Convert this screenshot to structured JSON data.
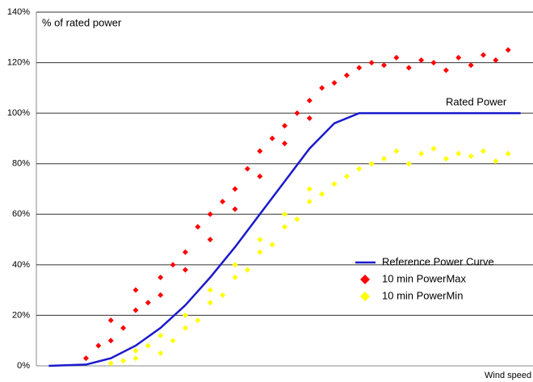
{
  "chart_data": {
    "type": "scatter",
    "y_label": "% of rated power",
    "x_label": "Wind speed",
    "annotation": "Rated Power",
    "xlim": [
      0,
      20
    ],
    "ylim": [
      0,
      140
    ],
    "yticks": [
      {
        "value": 0,
        "label": "0%"
      },
      {
        "value": 20,
        "label": "20%"
      },
      {
        "value": 40,
        "label": "40%"
      },
      {
        "value": 60,
        "label": "60%"
      },
      {
        "value": 80,
        "label": "80%"
      },
      {
        "value": 100,
        "label": "100%"
      },
      {
        "value": 120,
        "label": "120%"
      },
      {
        "value": 140,
        "label": "140%"
      }
    ],
    "grid": true,
    "legend": "lower right",
    "series": [
      {
        "name": "Reference Power Curve",
        "type": "line",
        "color": "#1a1acc",
        "x": [
          0.5,
          2,
          3,
          4,
          5,
          6,
          7,
          8,
          9,
          10,
          11,
          12,
          13,
          19.5
        ],
        "values": [
          0,
          0.5,
          3,
          8,
          15,
          24,
          35,
          47,
          60,
          73,
          86,
          96,
          100,
          100
        ]
      },
      {
        "name": "10 min PowerMax",
        "type": "scatter",
        "color": "#ff0000",
        "x": [
          2,
          2.5,
          3,
          3,
          3.5,
          4,
          4,
          4.5,
          5,
          5,
          5.5,
          6,
          6,
          6.5,
          7,
          7,
          7.5,
          8,
          8,
          8.5,
          9,
          9,
          9.5,
          10,
          10,
          10.5,
          11,
          11,
          11.5,
          12,
          12.5,
          13,
          13.5,
          14,
          14.5,
          15,
          15.5,
          16,
          16.5,
          17,
          17.5,
          18,
          18.5,
          19
        ],
        "values": [
          3,
          8,
          10,
          18,
          15,
          22,
          30,
          25,
          35,
          28,
          40,
          45,
          38,
          55,
          60,
          50,
          65,
          70,
          62,
          78,
          85,
          75,
          90,
          95,
          88,
          100,
          105,
          98,
          110,
          112,
          115,
          118,
          120,
          119,
          122,
          118,
          121,
          120,
          117,
          122,
          119,
          123,
          121,
          125
        ]
      },
      {
        "name": "10 min PowerMin",
        "type": "scatter",
        "color": "#ffff00",
        "x": [
          3,
          3.5,
          4,
          4,
          4.5,
          5,
          5,
          5.5,
          6,
          6,
          6.5,
          7,
          7,
          7.5,
          8,
          8,
          8.5,
          9,
          9,
          9.5,
          10,
          10,
          10.5,
          11,
          11,
          11.5,
          12,
          12.5,
          13,
          13.5,
          14,
          14.5,
          15,
          15.5,
          16,
          16.5,
          17,
          17.5,
          18,
          18.5,
          19
        ],
        "values": [
          1,
          2,
          3,
          6,
          8,
          5,
          12,
          10,
          15,
          20,
          18,
          25,
          30,
          28,
          35,
          40,
          38,
          45,
          50,
          48,
          55,
          60,
          58,
          65,
          70,
          68,
          72,
          75,
          78,
          80,
          82,
          85,
          80,
          84,
          86,
          82,
          84,
          83,
          85,
          81,
          84
        ]
      }
    ]
  }
}
